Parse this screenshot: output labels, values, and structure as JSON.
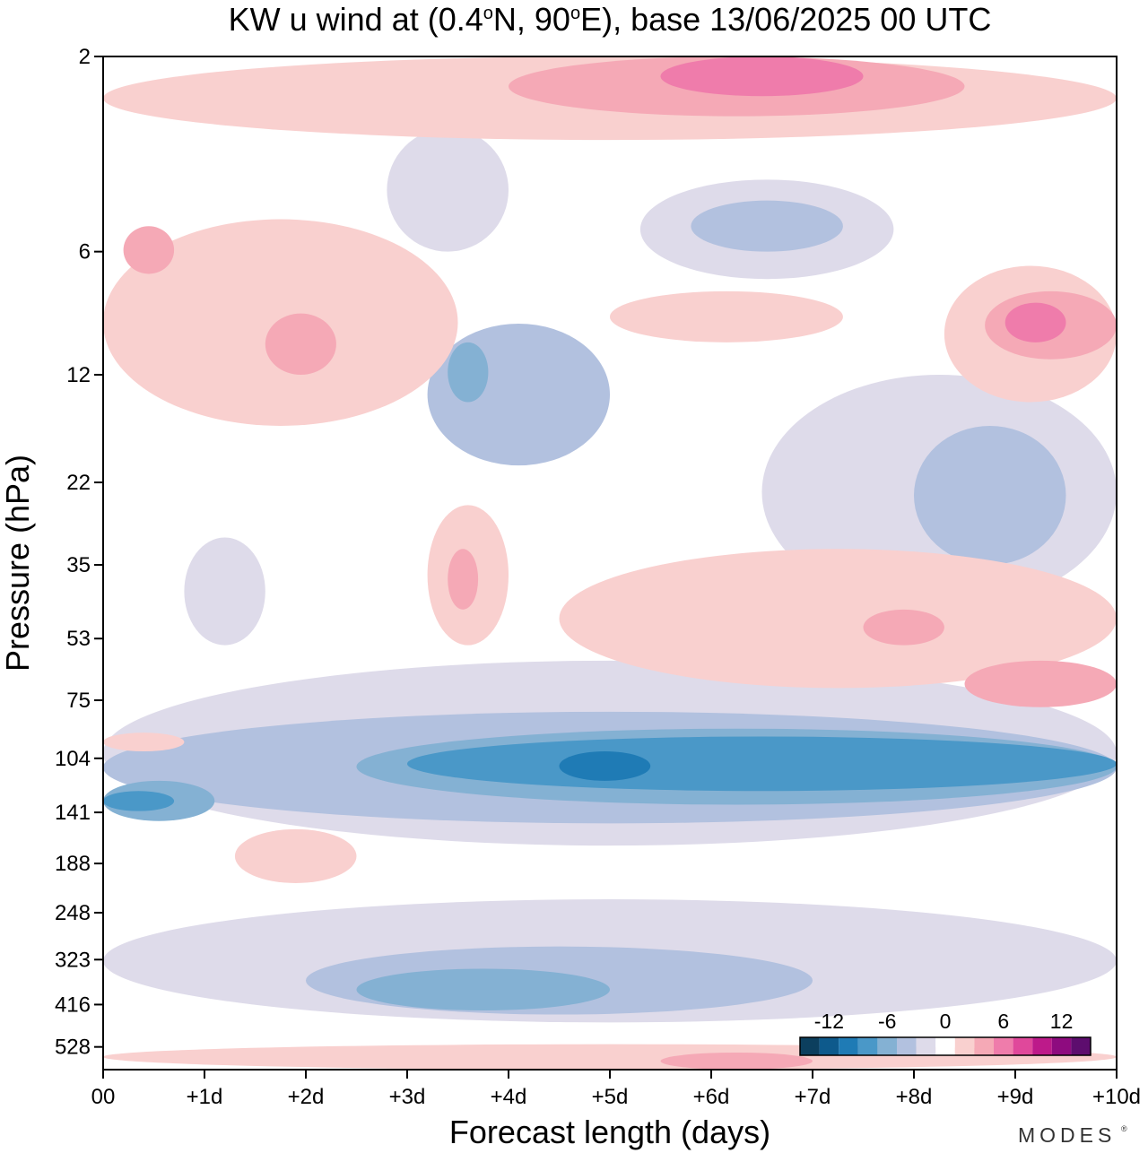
{
  "chart_data": {
    "type": "heatmap",
    "title_parts": {
      "prefix": "KW u wind at (0.4",
      "deg1": "o",
      "mid": "N, 90",
      "deg2": "o",
      "suffix": "E),  base 13/06/2025  00 UTC"
    },
    "xlabel": "Forecast length (days)",
    "ylabel": "Pressure (hPa)",
    "x_ticks": [
      "00",
      "+1d",
      "+2d",
      "+3d",
      "+4d",
      "+5d",
      "+6d",
      "+7d",
      "+8d",
      "+9d",
      "+10d"
    ],
    "x_range": [
      0,
      10
    ],
    "y_ticks": [
      2,
      6,
      12,
      22,
      35,
      53,
      75,
      104,
      141,
      188,
      248,
      323,
      416,
      528
    ],
    "y_range": [
      2,
      600
    ],
    "colorbar": {
      "labels": [
        "-12",
        "-6",
        "0",
        "6",
        "12"
      ],
      "colors": [
        "#0c3f5e",
        "#0e5a8c",
        "#1f7bb5",
        "#4a98c8",
        "#84b1d3",
        "#b2c1df",
        "#dedbea",
        "#ffffff",
        "#f9d0cf",
        "#f5a9b6",
        "#ef7cab",
        "#e0489b",
        "#bd1a8a",
        "#8e0b7f",
        "#5d0d6e"
      ],
      "level_step": 2
    },
    "field_regions": [
      {
        "level": -2,
        "day_start": 0.0,
        "day_end": 10.0,
        "p_top": 60,
        "p_bottom": 170
      },
      {
        "level": -4,
        "day_start": 0.0,
        "day_end": 10.0,
        "p_top": 80,
        "p_bottom": 150
      },
      {
        "level": -6,
        "day_start": 2.5,
        "day_end": 10.0,
        "p_top": 88,
        "p_bottom": 135
      },
      {
        "level": -8,
        "day_start": 3.0,
        "day_end": 10.0,
        "p_top": 92,
        "p_bottom": 125
      },
      {
        "level": -10,
        "day_start": 4.5,
        "day_end": 5.4,
        "p_top": 100,
        "p_bottom": 118
      },
      {
        "level": -6,
        "day_start": 0.0,
        "day_end": 1.1,
        "p_top": 118,
        "p_bottom": 148
      },
      {
        "level": -8,
        "day_start": 0.0,
        "day_end": 0.7,
        "p_top": 125,
        "p_bottom": 140
      },
      {
        "level": -2,
        "day_start": 0.0,
        "day_end": 10.0,
        "p_top": 230,
        "p_bottom": 460
      },
      {
        "level": -4,
        "day_start": 2.0,
        "day_end": 7.0,
        "p_top": 300,
        "p_bottom": 440
      },
      {
        "level": -6,
        "day_start": 2.5,
        "day_end": 5.0,
        "p_top": 340,
        "p_bottom": 430
      },
      {
        "level": -4,
        "day_start": 3.2,
        "day_end": 5.0,
        "p_top": 9,
        "p_bottom": 20
      },
      {
        "level": -6,
        "day_start": 3.4,
        "day_end": 3.8,
        "p_top": 10,
        "p_bottom": 14
      },
      {
        "level": -2,
        "day_start": 6.5,
        "day_end": 10.0,
        "p_top": 12,
        "p_bottom": 45
      },
      {
        "level": -4,
        "day_start": 8.0,
        "day_end": 9.5,
        "p_top": 16,
        "p_bottom": 35
      },
      {
        "level": -2,
        "day_start": 0.8,
        "day_end": 1.6,
        "p_top": 30,
        "p_bottom": 55
      },
      {
        "level": -2,
        "day_start": 2.8,
        "day_end": 4.0,
        "p_top": 3,
        "p_bottom": 6
      },
      {
        "level": -2,
        "day_start": 5.3,
        "day_end": 7.8,
        "p_top": 4,
        "p_bottom": 7
      },
      {
        "level": -4,
        "day_start": 5.8,
        "day_end": 7.3,
        "p_top": 4.5,
        "p_bottom": 6
      },
      {
        "level": 2,
        "day_start": 0.0,
        "day_end": 0.8,
        "p_top": 90,
        "p_bottom": 100
      },
      {
        "level": 2,
        "day_start": 1.3,
        "day_end": 2.5,
        "p_top": 155,
        "p_bottom": 210
      },
      {
        "level": 2,
        "day_start": 4.5,
        "day_end": 10.0,
        "p_top": 32,
        "p_bottom": 70
      },
      {
        "level": 4,
        "day_start": 8.5,
        "day_end": 10.0,
        "p_top": 60,
        "p_bottom": 78
      },
      {
        "level": 4,
        "day_start": 7.5,
        "day_end": 8.3,
        "p_top": 45,
        "p_bottom": 55
      },
      {
        "level": 2,
        "day_start": 3.2,
        "day_end": 4.0,
        "p_top": 25,
        "p_bottom": 55
      },
      {
        "level": 4,
        "day_start": 3.4,
        "day_end": 3.7,
        "p_top": 32,
        "p_bottom": 45
      },
      {
        "level": 2,
        "day_start": 0.0,
        "day_end": 10.0,
        "p_top": 2,
        "p_bottom": 3.2
      },
      {
        "level": 4,
        "day_start": 4.0,
        "day_end": 8.5,
        "p_top": 2,
        "p_bottom": 2.8
      },
      {
        "level": 6,
        "day_start": 5.5,
        "day_end": 7.5,
        "p_top": 2,
        "p_bottom": 2.5
      },
      {
        "level": 2,
        "day_start": 0.0,
        "day_end": 3.5,
        "p_top": 5,
        "p_bottom": 16
      },
      {
        "level": 4,
        "day_start": 0.2,
        "day_end": 0.7,
        "p_top": 5.2,
        "p_bottom": 6.8
      },
      {
        "level": 4,
        "day_start": 1.6,
        "day_end": 2.3,
        "p_top": 8.5,
        "p_bottom": 12
      },
      {
        "level": 2,
        "day_start": 5.0,
        "day_end": 7.3,
        "p_top": 7.5,
        "p_bottom": 10
      },
      {
        "level": 2,
        "day_start": 8.3,
        "day_end": 10.0,
        "p_top": 6.5,
        "p_bottom": 14
      },
      {
        "level": 4,
        "day_start": 8.7,
        "day_end": 10.0,
        "p_top": 7.5,
        "p_bottom": 11
      },
      {
        "level": 6,
        "day_start": 8.9,
        "day_end": 9.5,
        "p_top": 8,
        "p_bottom": 10
      },
      {
        "level": 2,
        "day_start": 0.0,
        "day_end": 10.0,
        "p_top": 520,
        "p_bottom": 600
      },
      {
        "level": 4,
        "day_start": 5.5,
        "day_end": 7.0,
        "p_top": 545,
        "p_bottom": 600
      }
    ]
  },
  "brand": {
    "name": "MODES",
    "mark": "®"
  }
}
